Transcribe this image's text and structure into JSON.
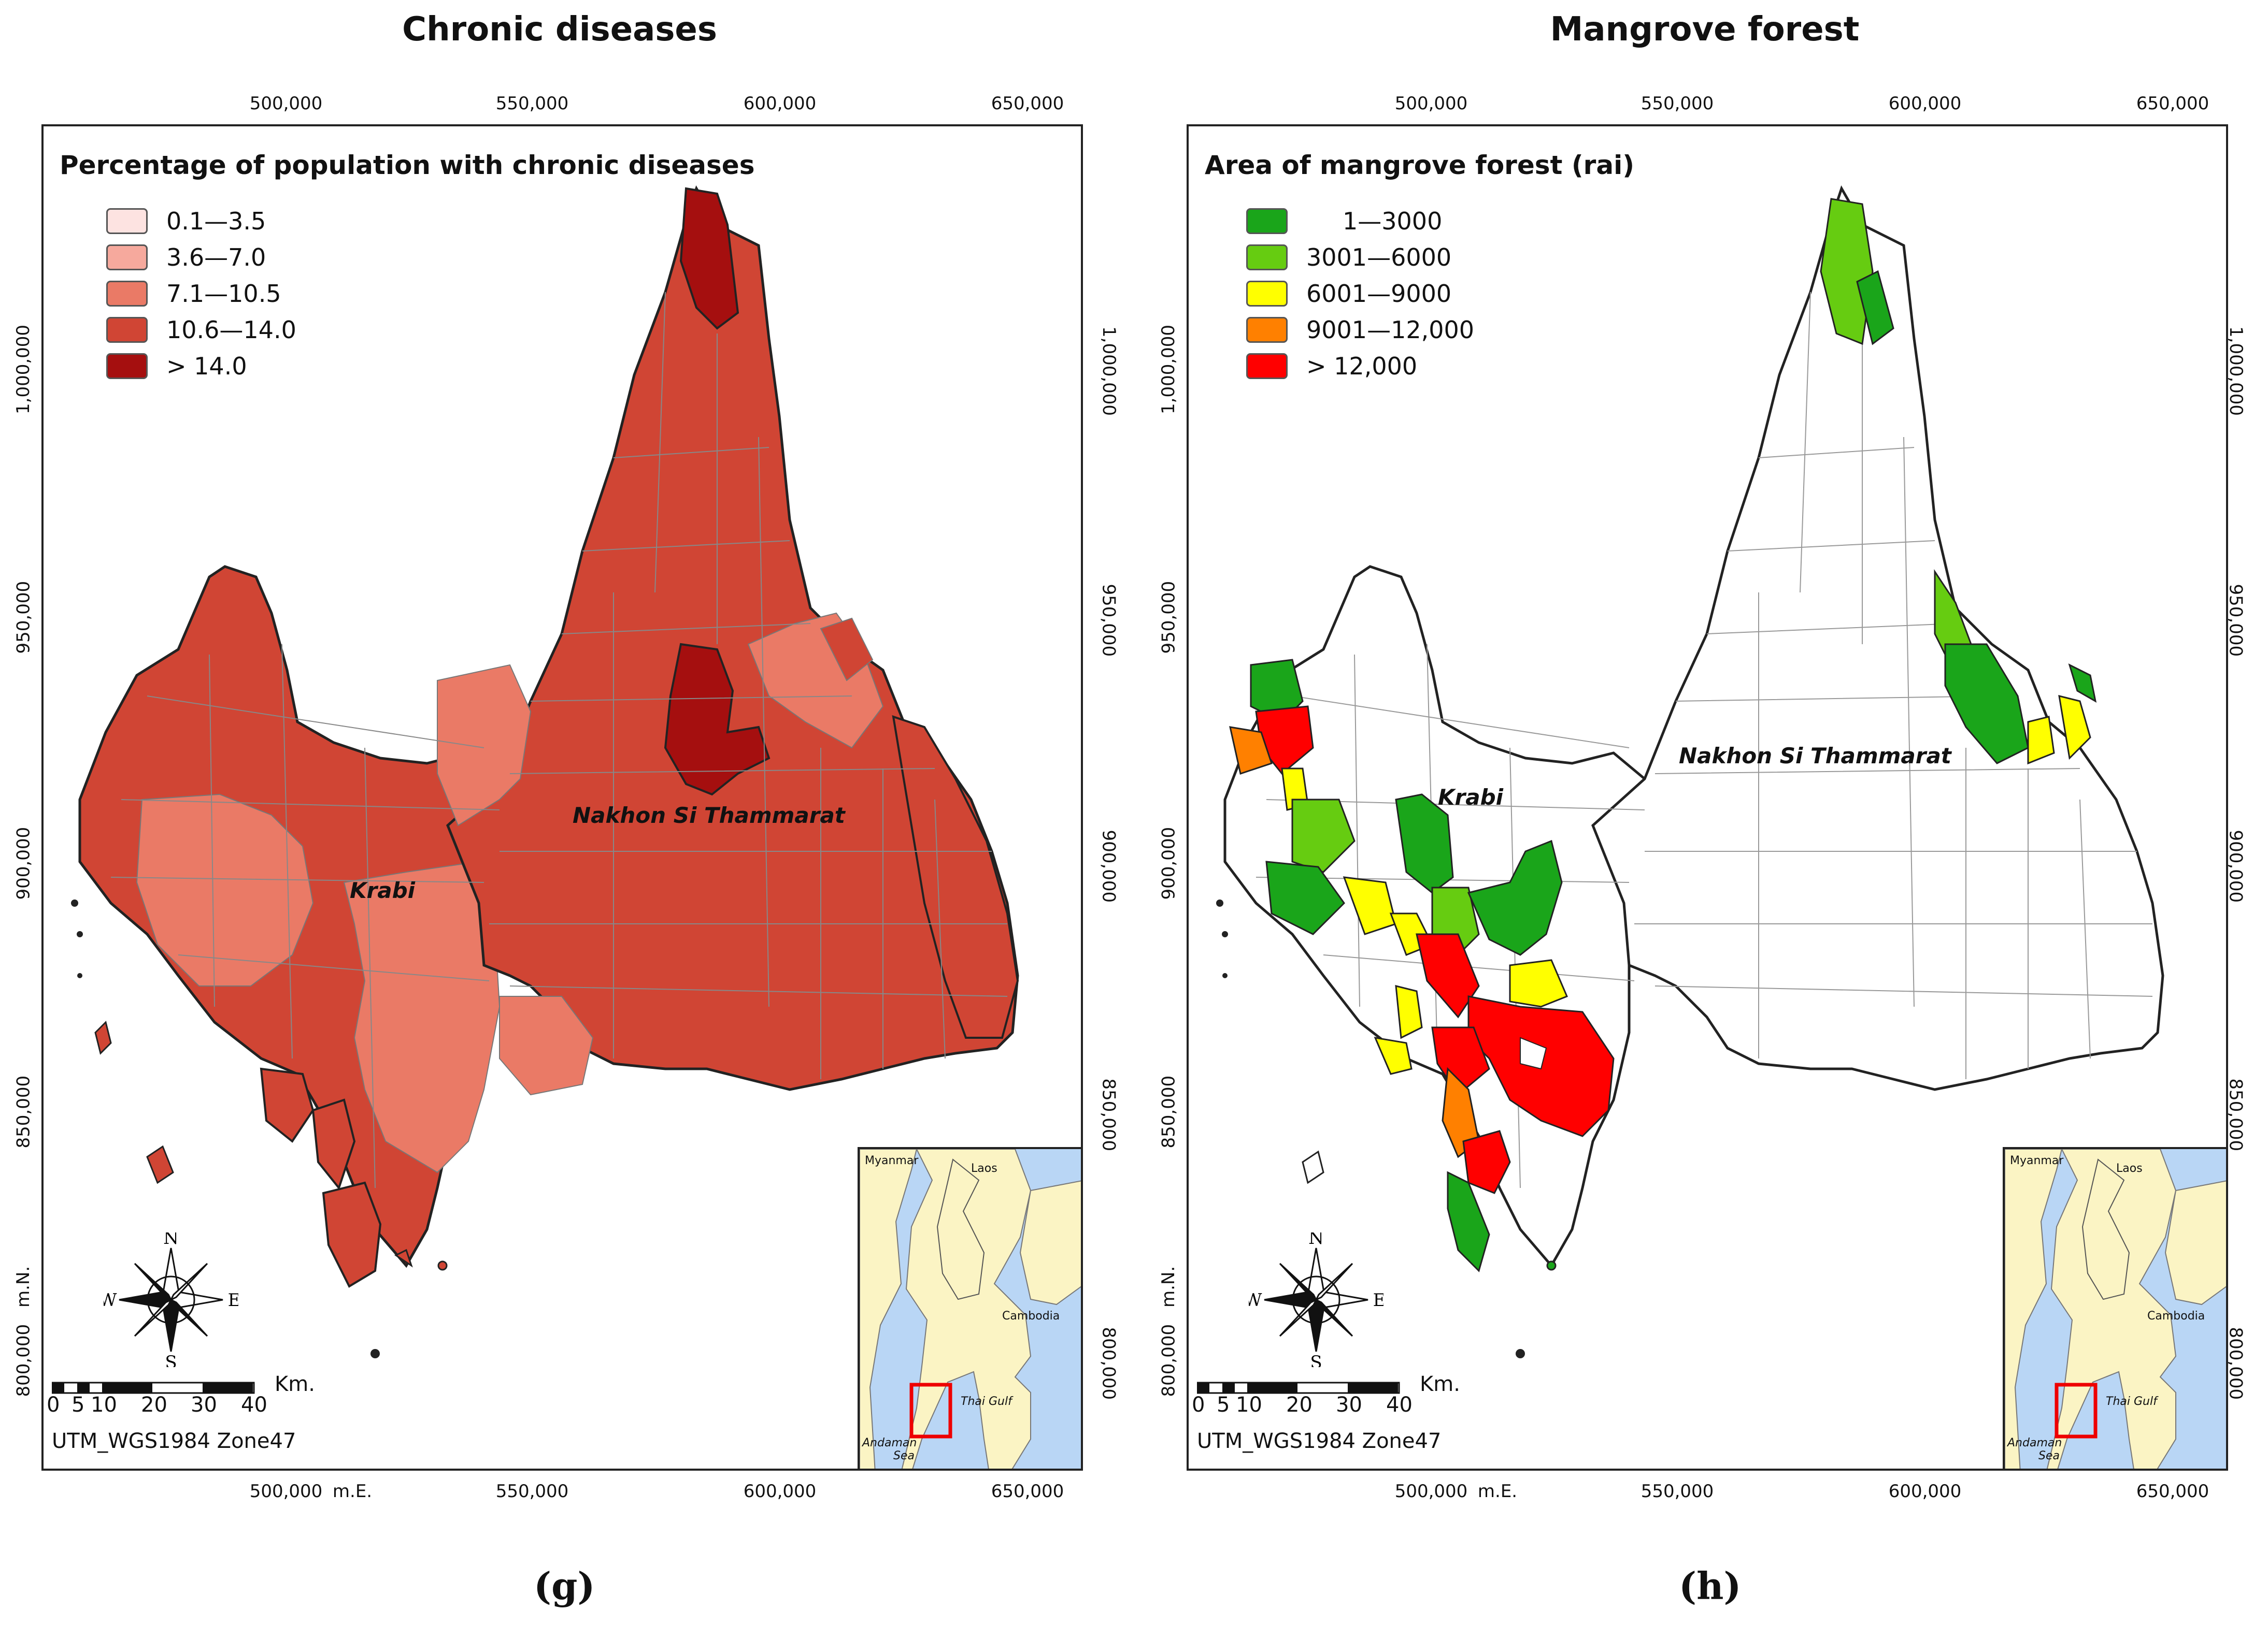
{
  "panels": [
    {
      "title": "Chronic diseases",
      "caption": "(g)",
      "legend_title": "Percentage of population with chronic diseases",
      "legend": [
        {
          "label": "0.1—3.5",
          "color": "#fde3e1"
        },
        {
          "label": "3.6—7.0",
          "color": "#f6a99d"
        },
        {
          "label": "7.1—10.5",
          "color": "#ea7a66"
        },
        {
          "label": "10.6—14.0",
          "color": "#d04534"
        },
        {
          "label": "> 14.0",
          "color": "#a50f0f"
        }
      ],
      "labels": {
        "krabi": "Krabi",
        "nakhon": "Nakhon Si Thammarat"
      }
    },
    {
      "title": "Mangrove forest",
      "caption": "(h)",
      "legend_title": "Area of mangrove forest (rai)",
      "legend": [
        {
          "label": "1—3000",
          "color": "#1aa51a"
        },
        {
          "label": "3001—6000",
          "color": "#66cc11"
        },
        {
          "label": "6001—9000",
          "color": "#ffff00"
        },
        {
          "label": "9001—12,000",
          "color": "#ff8000"
        },
        {
          "label": "> 12,000",
          "color": "#ff0000"
        }
      ],
      "labels": {
        "krabi": "Krabi",
        "nakhon": "Nakhon Si Thammarat"
      }
    }
  ],
  "axes": {
    "x_ticks": [
      "500,000",
      "550,000",
      "600,000",
      "650,000"
    ],
    "y_ticks": [
      "1,000,000",
      "950,000",
      "900,000",
      "850,000",
      "800,000"
    ],
    "x_unit": "m.E.",
    "y_unit": "m.N."
  },
  "scale_bar": {
    "ticks": [
      "0",
      "5",
      "10",
      "20",
      "30",
      "40"
    ],
    "unit": "Km."
  },
  "projection": "UTM_WGS1984 Zone47",
  "compass": {
    "n": "N",
    "s": "S",
    "e": "E",
    "w": "W"
  },
  "inset": {
    "myanmar": "Myanmar",
    "laos": "Laos",
    "cambodia": "Cambodia",
    "thai_gulf": "Thai Gulf",
    "andaman_1": "Andaman",
    "andaman_2": "Sea"
  }
}
